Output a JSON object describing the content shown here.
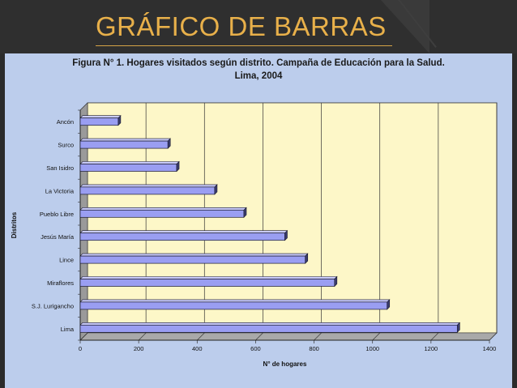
{
  "slide": {
    "title": "GRÁFICO DE BARRAS",
    "accent": "#e8b04a",
    "background": "#2f2f2f",
    "panel_color": "#bccdec"
  },
  "chart_data": {
    "type": "bar",
    "orientation": "horizontal",
    "title_line1": "Figura N° 1. Hogares visitados según distrito. Campaña de Educación para la Salud.",
    "title_line2": "Lima, 2004",
    "xlabel": "N° de hogares",
    "ylabel": "Distritos",
    "xlim": [
      0,
      1400
    ],
    "xticks": [
      0,
      200,
      400,
      600,
      800,
      1000,
      1200,
      1400
    ],
    "grid": "vertical",
    "categories": [
      "Ancón",
      "Surco",
      "San Isidro",
      "La Victoria",
      "Pueblo Libre",
      "Jesús María",
      "Lince",
      "Miraflores",
      "S.J. Lurigancho",
      "Lima"
    ],
    "values": [
      130,
      300,
      330,
      460,
      560,
      700,
      770,
      870,
      1050,
      1290
    ],
    "plot_background": "#fdf7c8",
    "bar_color": "#9a9ef2",
    "bar_edge": "#1a1a2e"
  }
}
